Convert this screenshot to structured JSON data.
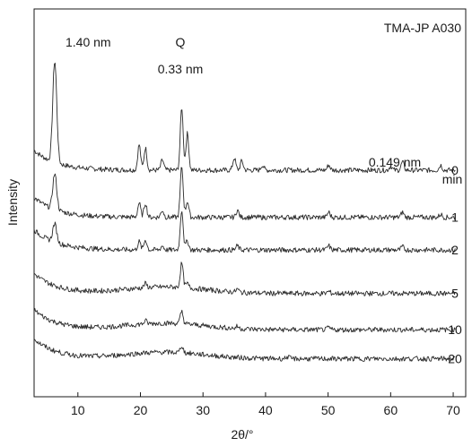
{
  "chart_data": {
    "type": "line",
    "title": "TMA-JP A030",
    "xlabel": "2θ/°",
    "ylabel": "Intensity",
    "xlim": [
      3,
      72
    ],
    "x_ticks": [
      "10",
      "20",
      "30",
      "40",
      "50",
      "60",
      "70"
    ],
    "legend_header": "min",
    "grid": false,
    "annotations": [
      {
        "text": "1.40 nm",
        "x": 10.5
      },
      {
        "text": "Q",
        "x": 26.6
      },
      {
        "text": "0.33 nm",
        "x": 26.6
      },
      {
        "text": "0.149 nm",
        "x": 62.0
      }
    ],
    "series": [
      {
        "name": "0",
        "baseline": 0.6,
        "peaks": [
          {
            "x": 6.3,
            "h": 1.0
          },
          {
            "x": 19.8,
            "h": 0.25
          },
          {
            "x": 20.8,
            "h": 0.22
          },
          {
            "x": 23.5,
            "h": 0.1
          },
          {
            "x": 26.6,
            "h": 0.62
          },
          {
            "x": 27.5,
            "h": 0.36
          },
          {
            "x": 35.0,
            "h": 0.12
          },
          {
            "x": 36.2,
            "h": 0.09
          },
          {
            "x": 39.5,
            "h": 0.05
          },
          {
            "x": 50.1,
            "h": 0.05
          },
          {
            "x": 60.0,
            "h": 0.04
          },
          {
            "x": 61.9,
            "h": 0.08
          },
          {
            "x": 68.0,
            "h": 0.05
          }
        ]
      },
      {
        "name": "1",
        "baseline": 0.47,
        "peaks": [
          {
            "x": 6.3,
            "h": 0.35
          },
          {
            "x": 19.8,
            "h": 0.14
          },
          {
            "x": 20.8,
            "h": 0.14
          },
          {
            "x": 23.5,
            "h": 0.07
          },
          {
            "x": 26.6,
            "h": 0.5
          },
          {
            "x": 27.5,
            "h": 0.16
          },
          {
            "x": 35.5,
            "h": 0.07
          },
          {
            "x": 50.1,
            "h": 0.05
          },
          {
            "x": 61.9,
            "h": 0.05
          },
          {
            "x": 68.0,
            "h": 0.03
          }
        ]
      },
      {
        "name": "2",
        "baseline": 0.38,
        "peaks": [
          {
            "x": 6.3,
            "h": 0.18
          },
          {
            "x": 19.8,
            "h": 0.08
          },
          {
            "x": 20.8,
            "h": 0.1
          },
          {
            "x": 23.5,
            "h": 0.04
          },
          {
            "x": 26.6,
            "h": 0.4
          },
          {
            "x": 27.5,
            "h": 0.09
          },
          {
            "x": 35.5,
            "h": 0.04
          },
          {
            "x": 50.1,
            "h": 0.04
          },
          {
            "x": 61.9,
            "h": 0.03
          }
        ]
      },
      {
        "name": "5",
        "baseline": 0.26,
        "peaks": [
          {
            "x": 20.8,
            "h": 0.04
          },
          {
            "x": 26.6,
            "h": 0.24
          },
          {
            "x": 27.5,
            "h": 0.04
          },
          {
            "x": 35.5,
            "h": 0.03
          },
          {
            "x": 50.1,
            "h": 0.02
          }
        ]
      },
      {
        "name": "10",
        "baseline": 0.16,
        "peaks": [
          {
            "x": 20.8,
            "h": 0.03
          },
          {
            "x": 26.6,
            "h": 0.12
          },
          {
            "x": 35.5,
            "h": 0.02
          },
          {
            "x": 50.1,
            "h": 0.02
          }
        ]
      },
      {
        "name": "20",
        "baseline": 0.08,
        "peaks": [
          {
            "x": 26.6,
            "h": 0.07
          },
          {
            "x": 43.5,
            "h": 0.02
          }
        ]
      }
    ]
  }
}
